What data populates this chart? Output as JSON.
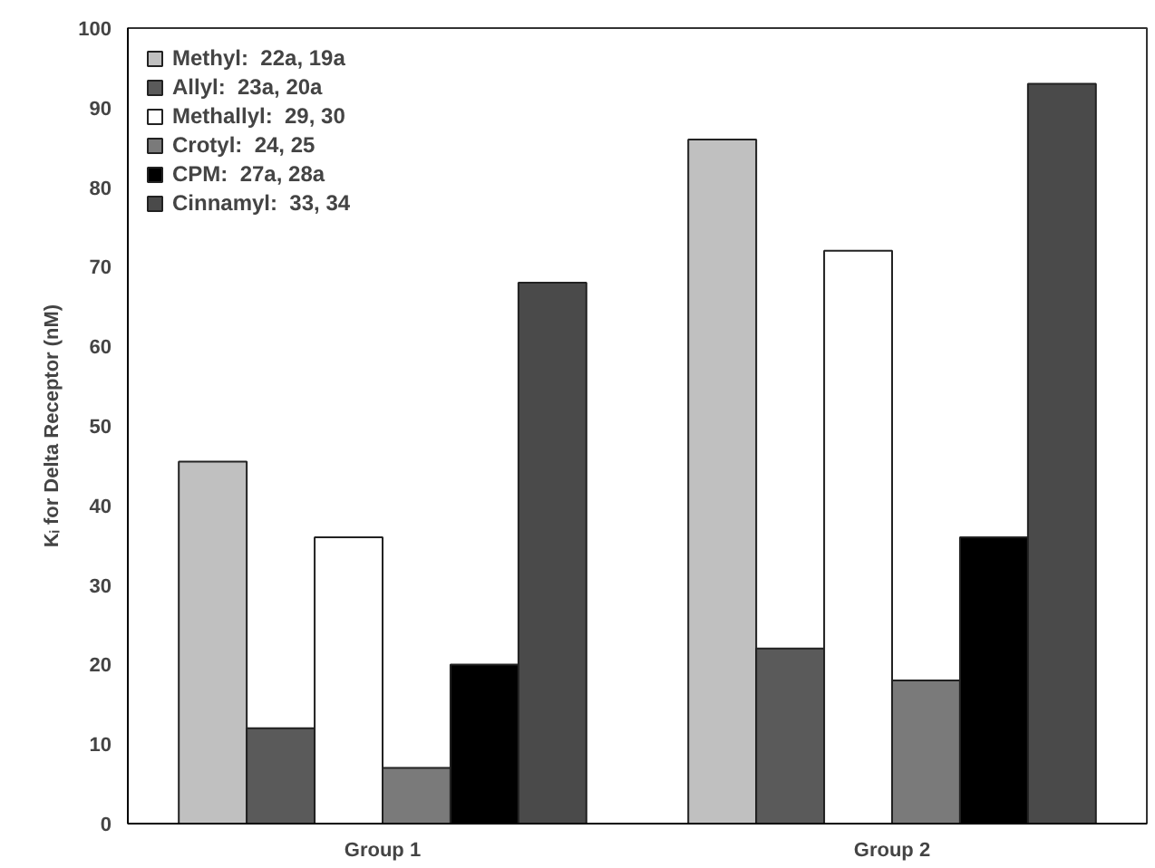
{
  "chart_data": {
    "type": "bar",
    "categories": [
      "Group 1",
      "Group 2"
    ],
    "ylabel": "Kᵢ for Delta Receptor (nM)",
    "ylim": [
      0,
      100
    ],
    "yticks": [
      0,
      10,
      20,
      30,
      40,
      50,
      60,
      70,
      80,
      90,
      100
    ],
    "grid": false,
    "legend": "top left",
    "series": [
      {
        "name": "Methyl:  22a, 19a",
        "color": "#c0c0c0",
        "values": [
          45.5,
          86
        ]
      },
      {
        "name": "Allyl:  23a, 20a",
        "color": "#5a5a5a",
        "values": [
          12,
          22
        ]
      },
      {
        "name": "Methallyl:  29, 30",
        "color": "#ffffff",
        "values": [
          36,
          72
        ]
      },
      {
        "name": "Crotyl:  24, 25",
        "color": "#7a7a7a",
        "values": [
          7,
          18
        ]
      },
      {
        "name": "CPM:  27a, 28a",
        "color": "#000000",
        "values": [
          20,
          36
        ]
      },
      {
        "name": "Cinnamyl:  33, 34",
        "color": "#4a4a4a",
        "values": [
          68,
          93
        ]
      }
    ]
  }
}
